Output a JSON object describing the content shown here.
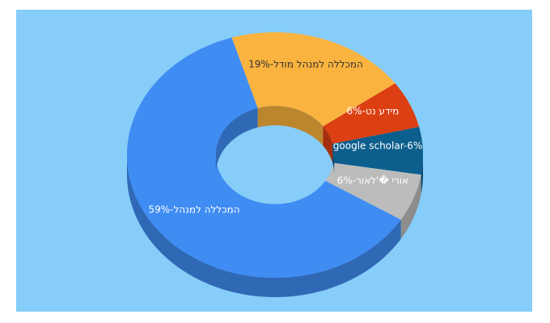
{
  "chart_data": {
    "type": "donut3d",
    "values": [
      19,
      6,
      6,
      6,
      59
    ],
    "value_labels": [
      "19%-המכללה למנהל מודל",
      "6%-מידע נט",
      "google scholar-6%",
      "6%-אורי �'לאור",
      "59%-המכללה למנהל"
    ],
    "colors": [
      "#fbb33f",
      "#dc3f11",
      "#0c5e8d",
      "#bcbcbc",
      "#3f8cf2"
    ]
  }
}
